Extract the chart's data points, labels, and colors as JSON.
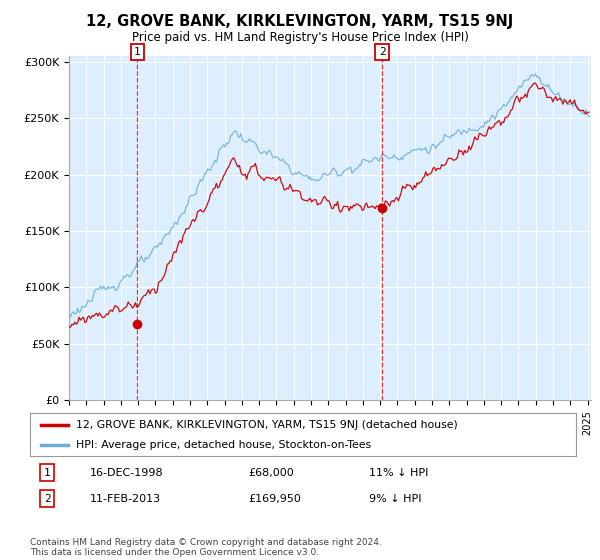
{
  "title": "12, GROVE BANK, KIRKLEVINGTON, YARM, TS15 9NJ",
  "subtitle": "Price paid vs. HM Land Registry's House Price Index (HPI)",
  "ylabel_ticks": [
    "£0",
    "£50K",
    "£100K",
    "£150K",
    "£200K",
    "£250K",
    "£300K"
  ],
  "ytick_vals": [
    0,
    50000,
    100000,
    150000,
    200000,
    250000,
    300000
  ],
  "ylim": [
    0,
    310000
  ],
  "xlim_start": 1995.0,
  "xlim_end": 2025.2,
  "point1_x": 1998.96,
  "point1_y": 68000,
  "point2_x": 2013.12,
  "point2_y": 169950,
  "hpi_color": "#6baed6",
  "price_color": "#cc0000",
  "plot_bg_color": "#ddeeff",
  "legend_label1": "12, GROVE BANK, KIRKLEVINGTON, YARM, TS15 9NJ (detached house)",
  "legend_label2": "HPI: Average price, detached house, Stockton-on-Tees",
  "annotation1_date": "16-DEC-1998",
  "annotation1_price": "£68,000",
  "annotation1_hpi": "11% ↓ HPI",
  "annotation2_date": "11-FEB-2013",
  "annotation2_price": "£169,950",
  "annotation2_hpi": "9% ↓ HPI",
  "footnote": "Contains HM Land Registry data © Crown copyright and database right 2024.\nThis data is licensed under the Open Government Licence v3.0.",
  "background_color": "#ffffff"
}
